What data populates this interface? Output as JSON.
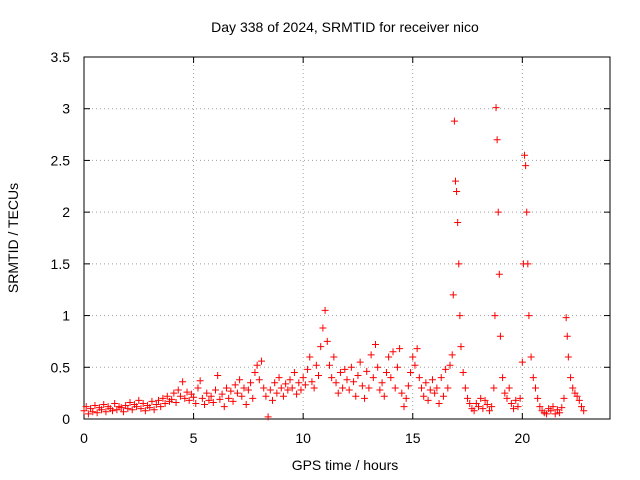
{
  "chart_data": {
    "type": "scatter",
    "title": "Day 338 of 2024, SRMTID for receiver nico",
    "xlabel": "GPS time / hours",
    "ylabel": "SRMTID / TECUs",
    "xlim": [
      0,
      24
    ],
    "ylim": [
      0,
      3.5
    ],
    "x_ticks": [
      0,
      5,
      10,
      15,
      20
    ],
    "x_tick_labels": [
      "0",
      "5",
      "10",
      "15",
      "20"
    ],
    "y_ticks": [
      0,
      0.5,
      1,
      1.5,
      2,
      2.5,
      3,
      3.5
    ],
    "y_tick_labels": [
      "0",
      "0.5",
      "1",
      "1.5",
      "2",
      "2.5",
      "3",
      "3.5"
    ],
    "grid": true,
    "marker": "+",
    "color": "#ff0000",
    "series": [
      {
        "name": "SRMTID",
        "points": [
          [
            0.0,
            0.08
          ],
          [
            0.1,
            0.12
          ],
          [
            0.2,
            0.05
          ],
          [
            0.3,
            0.1
          ],
          [
            0.4,
            0.07
          ],
          [
            0.5,
            0.13
          ],
          [
            0.6,
            0.06
          ],
          [
            0.7,
            0.11
          ],
          [
            0.8,
            0.09
          ],
          [
            0.9,
            0.14
          ],
          [
            1.0,
            0.07
          ],
          [
            1.1,
            0.12
          ],
          [
            1.2,
            0.1
          ],
          [
            1.3,
            0.08
          ],
          [
            1.4,
            0.15
          ],
          [
            1.5,
            0.09
          ],
          [
            1.6,
            0.12
          ],
          [
            1.7,
            0.11
          ],
          [
            1.8,
            0.07
          ],
          [
            1.9,
            0.13
          ],
          [
            2.0,
            0.1
          ],
          [
            2.1,
            0.16
          ],
          [
            2.2,
            0.09
          ],
          [
            2.3,
            0.14
          ],
          [
            2.4,
            0.12
          ],
          [
            2.5,
            0.18
          ],
          [
            2.6,
            0.1
          ],
          [
            2.7,
            0.15
          ],
          [
            2.8,
            0.08
          ],
          [
            2.9,
            0.13
          ],
          [
            3.0,
            0.11
          ],
          [
            3.1,
            0.17
          ],
          [
            3.2,
            0.09
          ],
          [
            3.3,
            0.14
          ],
          [
            3.4,
            0.18
          ],
          [
            3.5,
            0.12
          ],
          [
            3.6,
            0.2
          ],
          [
            3.7,
            0.15
          ],
          [
            3.8,
            0.22
          ],
          [
            3.9,
            0.17
          ],
          [
            4.0,
            0.19
          ],
          [
            4.1,
            0.25
          ],
          [
            4.2,
            0.16
          ],
          [
            4.3,
            0.28
          ],
          [
            4.4,
            0.22
          ],
          [
            4.5,
            0.36
          ],
          [
            4.6,
            0.2
          ],
          [
            4.7,
            0.26
          ],
          [
            4.8,
            0.18
          ],
          [
            4.9,
            0.24
          ],
          [
            5.0,
            0.21
          ],
          [
            5.1,
            0.15
          ],
          [
            5.2,
            0.3
          ],
          [
            5.3,
            0.37
          ],
          [
            5.4,
            0.2
          ],
          [
            5.5,
            0.14
          ],
          [
            5.6,
            0.25
          ],
          [
            5.7,
            0.18
          ],
          [
            5.8,
            0.22
          ],
          [
            5.9,
            0.16
          ],
          [
            6.0,
            0.28
          ],
          [
            6.1,
            0.42
          ],
          [
            6.2,
            0.19
          ],
          [
            6.3,
            0.24
          ],
          [
            6.4,
            0.12
          ],
          [
            6.5,
            0.3
          ],
          [
            6.6,
            0.2
          ],
          [
            6.7,
            0.27
          ],
          [
            6.8,
            0.17
          ],
          [
            6.9,
            0.33
          ],
          [
            7.0,
            0.25
          ],
          [
            7.1,
            0.38
          ],
          [
            7.2,
            0.22
          ],
          [
            7.3,
            0.3
          ],
          [
            7.4,
            0.14
          ],
          [
            7.5,
            0.28
          ],
          [
            7.6,
            0.35
          ],
          [
            7.7,
            0.2
          ],
          [
            7.8,
            0.45
          ],
          [
            7.9,
            0.52
          ],
          [
            8.0,
            0.38
          ],
          [
            8.1,
            0.56
          ],
          [
            8.2,
            0.3
          ],
          [
            8.3,
            0.22
          ],
          [
            8.4,
            0.02
          ],
          [
            8.5,
            0.28
          ],
          [
            8.6,
            0.18
          ],
          [
            8.7,
            0.35
          ],
          [
            8.8,
            0.25
          ],
          [
            8.9,
            0.4
          ],
          [
            9.0,
            0.3
          ],
          [
            9.1,
            0.22
          ],
          [
            9.2,
            0.34
          ],
          [
            9.3,
            0.28
          ],
          [
            9.4,
            0.38
          ],
          [
            9.5,
            0.3
          ],
          [
            9.6,
            0.45
          ],
          [
            9.7,
            0.24
          ],
          [
            9.8,
            0.35
          ],
          [
            9.9,
            0.28
          ],
          [
            10.0,
            0.4
          ],
          [
            10.1,
            0.33
          ],
          [
            10.2,
            0.48
          ],
          [
            10.3,
            0.6
          ],
          [
            10.4,
            0.36
          ],
          [
            10.5,
            0.3
          ],
          [
            10.6,
            0.52
          ],
          [
            10.7,
            0.42
          ],
          [
            10.8,
            0.7
          ],
          [
            10.9,
            0.88
          ],
          [
            11.0,
            1.05
          ],
          [
            11.1,
            0.75
          ],
          [
            11.2,
            0.52
          ],
          [
            11.3,
            0.4
          ],
          [
            11.4,
            0.6
          ],
          [
            11.5,
            0.35
          ],
          [
            11.6,
            0.25
          ],
          [
            11.7,
            0.45
          ],
          [
            11.8,
            0.3
          ],
          [
            11.9,
            0.48
          ],
          [
            12.0,
            0.38
          ],
          [
            12.1,
            0.28
          ],
          [
            12.2,
            0.5
          ],
          [
            12.3,
            0.36
          ],
          [
            12.4,
            0.22
          ],
          [
            12.5,
            0.42
          ],
          [
            12.6,
            0.55
          ],
          [
            12.7,
            0.32
          ],
          [
            12.8,
            0.2
          ],
          [
            12.9,
            0.46
          ],
          [
            13.0,
            0.3
          ],
          [
            13.1,
            0.62
          ],
          [
            13.2,
            0.4
          ],
          [
            13.3,
            0.72
          ],
          [
            13.4,
            0.5
          ],
          [
            13.5,
            0.28
          ],
          [
            13.6,
            0.35
          ],
          [
            13.7,
            0.22
          ],
          [
            13.8,
            0.45
          ],
          [
            13.9,
            0.6
          ],
          [
            14.0,
            0.4
          ],
          [
            14.1,
            0.65
          ],
          [
            14.2,
            0.3
          ],
          [
            14.3,
            0.5
          ],
          [
            14.4,
            0.68
          ],
          [
            14.5,
            0.25
          ],
          [
            14.6,
            0.12
          ],
          [
            14.7,
            0.2
          ],
          [
            14.8,
            0.32
          ],
          [
            14.9,
            0.45
          ],
          [
            15.0,
            0.6
          ],
          [
            15.1,
            0.52
          ],
          [
            15.2,
            0.68
          ],
          [
            15.3,
            0.4
          ],
          [
            15.4,
            0.3
          ],
          [
            15.5,
            0.22
          ],
          [
            15.6,
            0.35
          ],
          [
            15.7,
            0.18
          ],
          [
            15.8,
            0.28
          ],
          [
            15.9,
            0.38
          ],
          [
            16.0,
            0.25
          ],
          [
            16.1,
            0.3
          ],
          [
            16.2,
            0.15
          ],
          [
            16.3,
            0.4
          ],
          [
            16.4,
            0.22
          ],
          [
            16.5,
            0.48
          ],
          [
            16.6,
            0.3
          ],
          [
            16.7,
            0.52
          ],
          [
            16.8,
            0.62
          ],
          [
            16.85,
            1.2
          ],
          [
            16.9,
            2.88
          ],
          [
            16.95,
            2.3
          ],
          [
            17.0,
            2.2
          ],
          [
            17.05,
            1.9
          ],
          [
            17.1,
            1.5
          ],
          [
            17.15,
            1.0
          ],
          [
            17.2,
            0.7
          ],
          [
            17.3,
            0.45
          ],
          [
            17.4,
            0.3
          ],
          [
            17.5,
            0.2
          ],
          [
            17.6,
            0.15
          ],
          [
            17.7,
            0.1
          ],
          [
            17.8,
            0.08
          ],
          [
            17.9,
            0.15
          ],
          [
            18.0,
            0.12
          ],
          [
            18.1,
            0.2
          ],
          [
            18.2,
            0.1
          ],
          [
            18.3,
            0.18
          ],
          [
            18.4,
            0.14
          ],
          [
            18.5,
            0.08
          ],
          [
            18.6,
            0.12
          ],
          [
            18.7,
            0.3
          ],
          [
            18.75,
            1.0
          ],
          [
            18.8,
            3.01
          ],
          [
            18.85,
            2.7
          ],
          [
            18.9,
            2.0
          ],
          [
            18.95,
            1.4
          ],
          [
            19.0,
            0.8
          ],
          [
            19.1,
            0.4
          ],
          [
            19.2,
            0.25
          ],
          [
            19.3,
            0.2
          ],
          [
            19.4,
            0.3
          ],
          [
            19.5,
            0.15
          ],
          [
            19.6,
            0.1
          ],
          [
            19.7,
            0.18
          ],
          [
            19.8,
            0.12
          ],
          [
            19.9,
            0.2
          ],
          [
            20.0,
            0.55
          ],
          [
            20.05,
            1.5
          ],
          [
            20.1,
            2.55
          ],
          [
            20.15,
            2.45
          ],
          [
            20.2,
            2.0
          ],
          [
            20.25,
            1.5
          ],
          [
            20.3,
            1.0
          ],
          [
            20.4,
            0.6
          ],
          [
            20.5,
            0.4
          ],
          [
            20.6,
            0.3
          ],
          [
            20.7,
            0.2
          ],
          [
            20.8,
            0.12
          ],
          [
            20.9,
            0.08
          ],
          [
            21.0,
            0.06
          ],
          [
            21.1,
            0.05
          ],
          [
            21.2,
            0.1
          ],
          [
            21.3,
            0.08
          ],
          [
            21.4,
            0.12
          ],
          [
            21.5,
            0.05
          ],
          [
            21.6,
            0.09
          ],
          [
            21.7,
            0.06
          ],
          [
            21.8,
            0.11
          ],
          [
            21.9,
            0.2
          ],
          [
            22.0,
            0.98
          ],
          [
            22.05,
            0.8
          ],
          [
            22.1,
            0.6
          ],
          [
            22.2,
            0.4
          ],
          [
            22.3,
            0.3
          ],
          [
            22.4,
            0.25
          ],
          [
            22.5,
            0.22
          ],
          [
            22.6,
            0.18
          ],
          [
            22.7,
            0.12
          ],
          [
            22.8,
            0.08
          ]
        ]
      }
    ]
  }
}
